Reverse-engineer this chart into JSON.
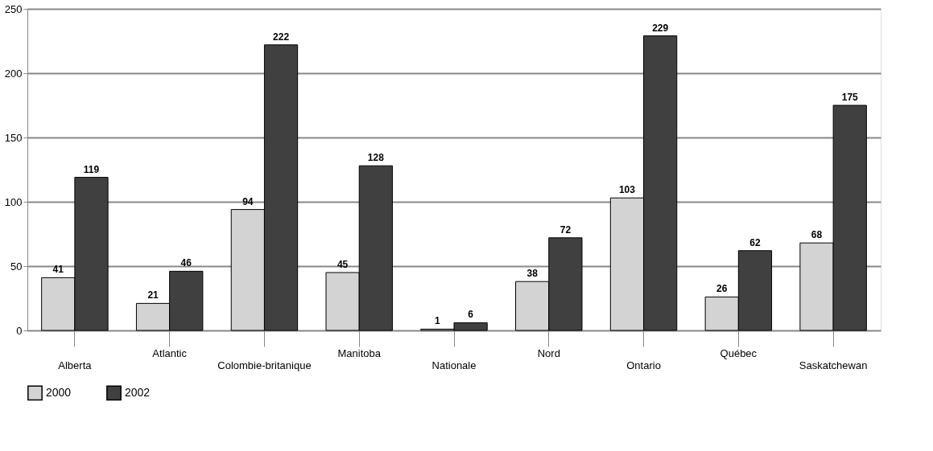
{
  "chart_data": {
    "type": "bar",
    "categories": [
      "Alberta",
      "Atlantic",
      "Colombie-britanique",
      "Manitoba",
      "Nationale",
      "Nord",
      "Ontario",
      "Québec",
      "Saskatchewan"
    ],
    "series": [
      {
        "name": "2000",
        "color": "#d3d3d3",
        "values": [
          41,
          21,
          94,
          45,
          1,
          38,
          103,
          26,
          68
        ]
      },
      {
        "name": "2002",
        "color": "#404040",
        "values": [
          119,
          46,
          222,
          128,
          6,
          72,
          229,
          62,
          175
        ]
      }
    ],
    "ylim": [
      0,
      250
    ],
    "yticks": [
      0,
      50,
      100,
      150,
      200,
      250
    ],
    "grid": "y",
    "legend": "bottom",
    "data_labels": true
  }
}
